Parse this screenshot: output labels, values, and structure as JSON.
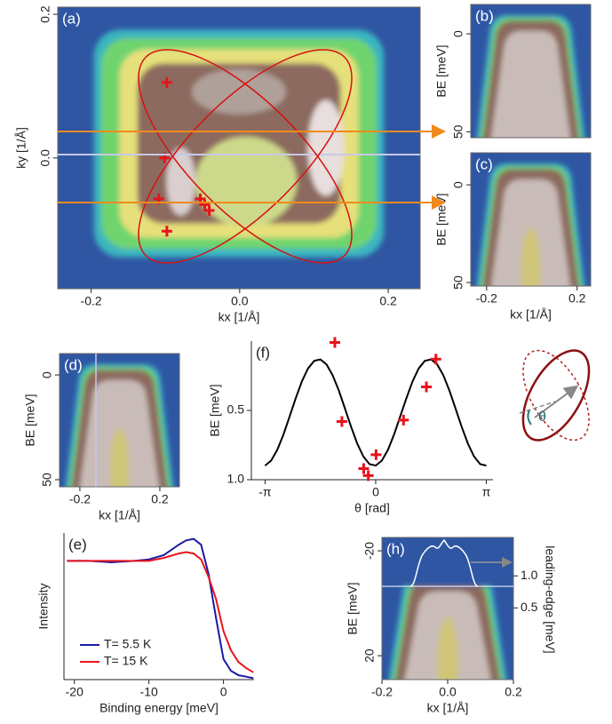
{
  "chart_data": [
    {
      "type": "heatmap",
      "label": "(a)",
      "xlabel": "kx [1/Å]",
      "ylabel": "ky [1/Å]",
      "xlim": [
        -0.245,
        0.243
      ],
      "ylim": [
        -0.182,
        0.21
      ],
      "xticks": [
        -0.2,
        {
          "value": 0,
          "label": "0.0"
        },
        0.2
      ],
      "yticks": [
        {
          "value": 0,
          "label": "0.0"
        },
        0.2
      ],
      "points": {
        "color": "#e8141c",
        "x": [
          -0.098,
          -0.101,
          -0.109,
          -0.098,
          -0.053,
          -0.047,
          -0.041
        ],
        "values": [
          0.105,
          0,
          -0.057,
          -0.102,
          -0.057,
          -0.065,
          -0.073
        ]
      }
    },
    {
      "type": "heatmap",
      "label": "(b)",
      "ylabel": "BE [meV]",
      "xlim": [
        -0.27,
        0.26
      ],
      "ylim": [
        53,
        -15
      ],
      "yticks": [
        0,
        50
      ]
    },
    {
      "type": "heatmap",
      "label": "(c)",
      "xlabel": "kx [1/Å]",
      "ylabel": "BE [meV]",
      "xlim": [
        -0.27,
        0.26
      ],
      "ylim": [
        51.8,
        -16.4
      ],
      "xticks": [
        -0.2,
        0.2
      ],
      "yticks": [
        0,
        50
      ]
    },
    {
      "type": "heatmap",
      "label": "(d)",
      "xlabel": "kx [1/Å]",
      "ylabel": "BE [meV]",
      "xlim": [
        -0.302,
        0.298
      ],
      "ylim": [
        53.4,
        -10.2
      ],
      "xticks": [
        -0.2,
        0.2
      ],
      "yticks": [
        0,
        50
      ]
    },
    {
      "type": "line",
      "label": "(f)",
      "xlabel": "θ [rad]",
      "ylabel": "BE [meV]",
      "xlim": [
        -3.53,
        3.33
      ],
      "ylim": [
        1.0,
        0.0
      ],
      "xticks": [
        {
          "value": -3.1416,
          "label": "-π"
        },
        0,
        {
          "value": 3.1416,
          "label": "π"
        }
      ],
      "yticks": [
        0.5,
        {
          "value": 1.0,
          "label": "1.0"
        }
      ],
      "series": [
        {
          "color": "#000000",
          "x": [
            -3.142,
            -2.967,
            -2.793,
            -2.618,
            -2.443,
            -2.269,
            -2.094,
            -1.92,
            -1.745,
            -1.571,
            -1.396,
            -1.222,
            -1.047,
            -0.873,
            -0.698,
            -0.524,
            -0.349,
            -0.175,
            0,
            0.175,
            0.349,
            0.524,
            0.698,
            0.873,
            1.047,
            1.222,
            1.396,
            1.571,
            1.745,
            1.92,
            2.094,
            2.269,
            2.443,
            2.618,
            2.793,
            2.967,
            3.142
          ],
          "values": [
            0.898,
            0.862,
            0.784,
            0.673,
            0.543,
            0.411,
            0.29,
            0.197,
            0.142,
            0.132,
            0.168,
            0.246,
            0.357,
            0.487,
            0.619,
            0.74,
            0.833,
            0.888,
            0.898,
            0.862,
            0.784,
            0.673,
            0.543,
            0.411,
            0.29,
            0.197,
            0.142,
            0.132,
            0.168,
            0.246,
            0.357,
            0.487,
            0.619,
            0.74,
            0.833,
            0.888,
            0.898
          ]
        },
        {
          "color": "#e8141c",
          "marker": "+",
          "x": [
            -1.16,
            -0.96,
            -0.34,
            -0.21,
            0.01,
            0.79,
            1.44,
            1.71
          ],
          "values": [
            0.01,
            0.58,
            0.92,
            0.97,
            0.82,
            0.57,
            0.33,
            0.13
          ]
        }
      ]
    },
    {
      "type": "line",
      "label": "(e)",
      "xlabel": "Binding energy [meV]",
      "ylabel": "Intensity",
      "xlim": [
        -21.4,
        4.1
      ],
      "ylim": [
        0,
        1
      ],
      "xticks": [
        -20,
        -10,
        0
      ],
      "legend": "lower-left",
      "x": [
        -21,
        -18,
        -15,
        -12,
        -10,
        -8,
        -6,
        -5,
        -4,
        -3,
        -2,
        -1,
        0,
        1,
        2,
        3,
        4
      ],
      "series": [
        {
          "name": "T= 5.5 K",
          "color": "#1a1aa6",
          "values": [
            0.81,
            0.81,
            0.8,
            0.81,
            0.82,
            0.85,
            0.92,
            0.95,
            0.96,
            0.92,
            0.72,
            0.42,
            0.14,
            0.06,
            0.03,
            0.02,
            0.01
          ]
        },
        {
          "name": "T= 15 K",
          "color": "#e8141c",
          "values": [
            0.81,
            0.81,
            0.81,
            0.81,
            0.81,
            0.83,
            0.86,
            0.87,
            0.86,
            0.82,
            0.7,
            0.55,
            0.33,
            0.2,
            0.12,
            0.08,
            0.05
          ]
        }
      ]
    },
    {
      "type": "heatmap",
      "label": "(h)",
      "xlabel": "kx [1/Å]",
      "ylabel": "BE [meV]",
      "y2label": "leading-edge [meV]",
      "xlim": [
        -0.2,
        0.2
      ],
      "ylim": [
        29.1,
        -25.1
      ],
      "y2lim": [
        -0.62,
        1.6
      ],
      "xticks": [
        -0.2,
        {
          "value": 0,
          "label": "0.0"
        },
        0.2
      ],
      "yticks": [
        -20,
        20
      ],
      "y2ticks": [
        0.5,
        {
          "value": 1.0,
          "label": "1.0"
        }
      ]
    }
  ],
  "diagram": {
    "angle_label": "θ"
  }
}
